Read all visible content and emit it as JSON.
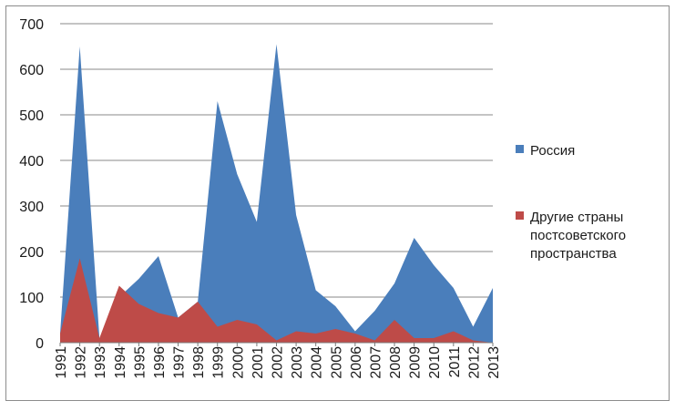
{
  "chart_data": {
    "type": "area",
    "x": [
      "1991",
      "1992",
      "1993",
      "1994",
      "1995",
      "1996",
      "1997",
      "1998",
      "1999",
      "2000",
      "2001",
      "2002",
      "2003",
      "2004",
      "2005",
      "2006",
      "2007",
      "2008",
      "2009",
      "2010",
      "2011",
      "2012",
      "2013"
    ],
    "series": [
      {
        "name": "Россия",
        "color": "#4a7ebb",
        "values": [
          20,
          650,
          10,
          100,
          140,
          190,
          55,
          90,
          530,
          370,
          265,
          655,
          280,
          115,
          80,
          25,
          70,
          130,
          230,
          170,
          120,
          35,
          120
        ]
      },
      {
        "name_lines": [
          "Другие страны",
          "постсоветского",
          "пространства"
        ],
        "color": "#be4b48",
        "values": [
          20,
          185,
          10,
          125,
          85,
          65,
          55,
          90,
          35,
          50,
          40,
          5,
          25,
          20,
          30,
          20,
          5,
          50,
          10,
          10,
          25,
          5,
          0
        ]
      }
    ],
    "ylim": [
      0,
      700
    ],
    "yticks": [
      0,
      100,
      200,
      300,
      400,
      500,
      600,
      700
    ],
    "grid": true,
    "legend_position": "right"
  }
}
